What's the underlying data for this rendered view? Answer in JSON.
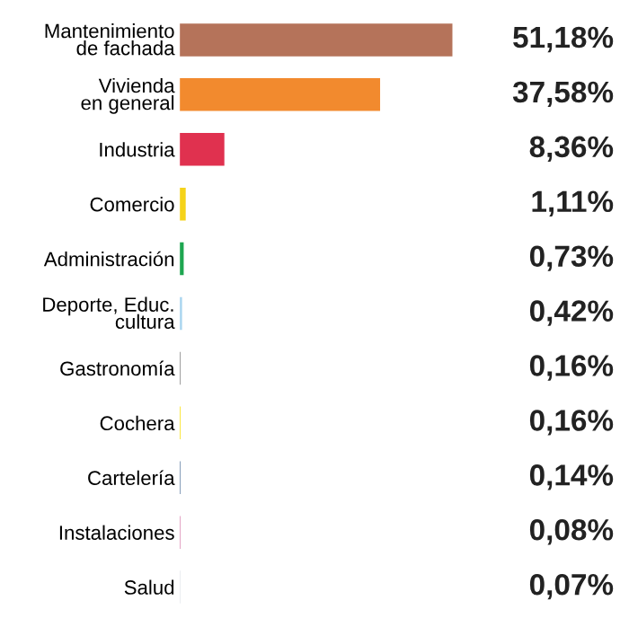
{
  "chart_data": {
    "type": "bar",
    "orientation": "horizontal",
    "categories": [
      "Mantenimiento\nde fachada",
      "Vivienda\nen general",
      "Industria",
      "Comercio",
      "Administración",
      "Deporte, Educ.\ncultura",
      "Gastronomía",
      "Cochera",
      "Cartelería",
      "Instalaciones",
      "Salud"
    ],
    "values": [
      51.18,
      37.58,
      8.36,
      1.11,
      0.73,
      0.42,
      0.16,
      0.16,
      0.14,
      0.08,
      0.07
    ],
    "colors": [
      "#b5735a",
      "#f28a2e",
      "#e0314f",
      "#f5d31a",
      "#1ea650",
      "#a8d4ef",
      "#8c8c8c",
      "#f9e21c",
      "#5f7ea3",
      "#c0307a",
      "#c8d0da"
    ],
    "value_labels": [
      "51,18%",
      "37,58%",
      "8,36%",
      "1,11%",
      "0,73%",
      "0,42%",
      "0,16%",
      "0,16%",
      "0,14%",
      "0,08%",
      "0,07%"
    ]
  }
}
